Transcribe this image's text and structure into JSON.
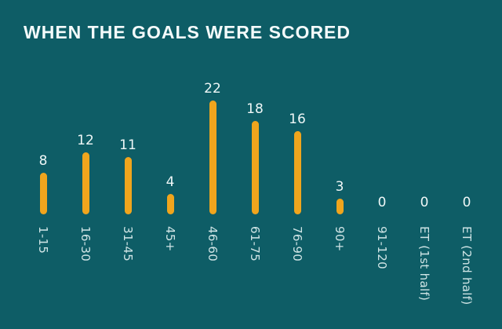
{
  "title": "WHEN THE GOALS WERE SCORED",
  "colors": {
    "background": "#0e5d66",
    "bar": "#f0a51d",
    "title": "#f4fbfb",
    "value_label": "#eff7f7",
    "tick_label": "#cfe4e5"
  },
  "chart_data": {
    "type": "bar",
    "title": "WHEN THE GOALS WERE SCORED",
    "categories": [
      "1-15",
      "16-30",
      "31-45",
      "45+",
      "46-60",
      "61-75",
      "76-90",
      "90+",
      "91-120",
      "ET (1st half)",
      "ET (2nd half)"
    ],
    "values": [
      8,
      12,
      11,
      4,
      22,
      18,
      16,
      3,
      0,
      0,
      0
    ],
    "xlabel": "",
    "ylabel": "",
    "ylim": [
      0,
      22
    ],
    "grid": false,
    "legend": false,
    "axis_lines": false,
    "bar_style": "rounded-lollipop",
    "value_labels": true,
    "x_tick_rotation": 90
  }
}
